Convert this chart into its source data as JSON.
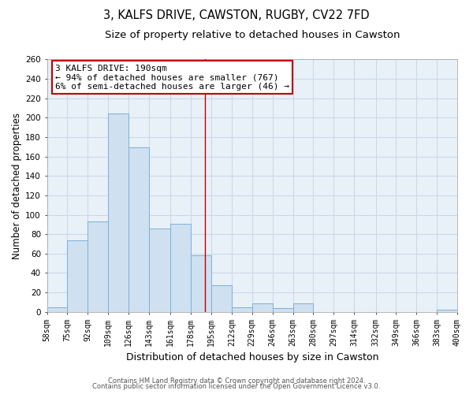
{
  "title": "3, KALFS DRIVE, CAWSTON, RUGBY, CV22 7FD",
  "subtitle": "Size of property relative to detached houses in Cawston",
  "xlabel": "Distribution of detached houses by size in Cawston",
  "ylabel": "Number of detached properties",
  "bin_edges": [
    58,
    75,
    92,
    109,
    126,
    143,
    161,
    178,
    195,
    212,
    229,
    246,
    263,
    280,
    297,
    314,
    332,
    349,
    366,
    383,
    400
  ],
  "bin_labels": [
    "58sqm",
    "75sqm",
    "92sqm",
    "109sqm",
    "126sqm",
    "143sqm",
    "161sqm",
    "178sqm",
    "195sqm",
    "212sqm",
    "229sqm",
    "246sqm",
    "263sqm",
    "280sqm",
    "297sqm",
    "314sqm",
    "332sqm",
    "349sqm",
    "366sqm",
    "383sqm",
    "400sqm"
  ],
  "counts": [
    5,
    74,
    93,
    204,
    169,
    86,
    91,
    58,
    27,
    5,
    9,
    4,
    9,
    0,
    0,
    0,
    0,
    0,
    0,
    2
  ],
  "bar_color": "#cfe0f0",
  "bar_edge_color": "#7db0d8",
  "property_size": 190,
  "vline_color": "#c00000",
  "annotation_title": "3 KALFS DRIVE: 190sqm",
  "annotation_line1": "← 94% of detached houses are smaller (767)",
  "annotation_line2": "6% of semi-detached houses are larger (46) →",
  "annotation_box_color": "#ffffff",
  "annotation_box_edge": "#c00000",
  "footer1": "Contains HM Land Registry data © Crown copyright and database right 2024.",
  "footer2": "Contains public sector information licensed under the Open Government Licence v3.0.",
  "background_color": "#ffffff",
  "plot_bg_color": "#e8f0f8",
  "grid_color": "#c8d8e8",
  "ylim": [
    0,
    260
  ],
  "title_fontsize": 10.5,
  "subtitle_fontsize": 9.5,
  "axis_label_fontsize": 8.5,
  "tick_fontsize": 7,
  "annot_fontsize": 8,
  "footer_fontsize": 6
}
